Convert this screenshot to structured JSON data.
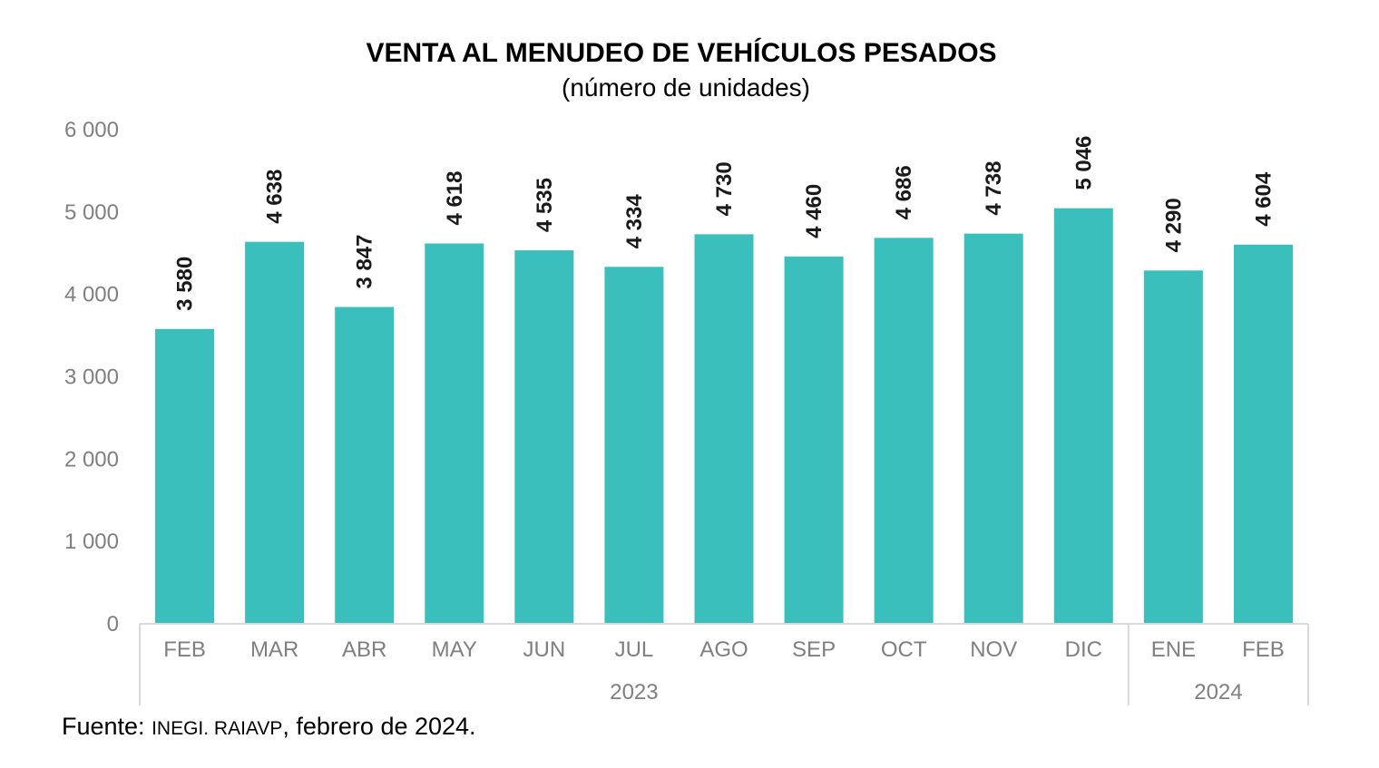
{
  "chart_data": {
    "type": "bar",
    "title": "VENTA AL MENUDEO DE VEHÍCULOS PESADOS",
    "subtitle": "(número de unidades)",
    "categories": [
      "FEB",
      "MAR",
      "ABR",
      "MAY",
      "JUN",
      "JUL",
      "AGO",
      "SEP",
      "OCT",
      "NOV",
      "DIC",
      "ENE",
      "FEB"
    ],
    "values": [
      3580,
      4638,
      3847,
      4618,
      4535,
      4334,
      4730,
      4460,
      4686,
      4738,
      5046,
      4290,
      4604
    ],
    "data_labels": [
      "3 580",
      "4 638",
      "3 847",
      "4 618",
      "4 535",
      "4 334",
      "4 730",
      "4 460",
      "4 686",
      "4 738",
      "5 046",
      "4 290",
      "4 604"
    ],
    "year_groups": [
      {
        "label": "2023",
        "start": 0,
        "end": 10
      },
      {
        "label": "2024",
        "start": 11,
        "end": 12
      }
    ],
    "ylim": [
      0,
      6000
    ],
    "yticks": [
      0,
      1000,
      2000,
      3000,
      4000,
      5000,
      6000
    ],
    "ytick_labels": [
      "0",
      "1 000",
      "2 000",
      "3 000",
      "4 000",
      "5 000",
      "6 000"
    ],
    "grid": false,
    "legend": "none",
    "bar_color": "#3bbfbc"
  },
  "source": {
    "prefix": "Fuente: ",
    "org": "INEGI. RAIAVP",
    "suffix": ", febrero de 2024."
  }
}
